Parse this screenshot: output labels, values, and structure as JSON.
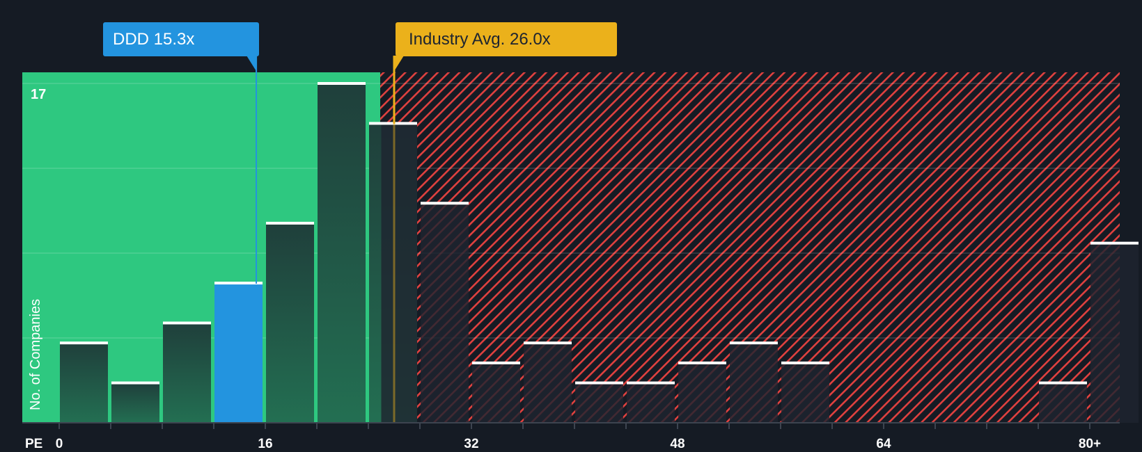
{
  "callouts": {
    "company": {
      "label": "DDD 15.3x",
      "value": 15.3,
      "color": "#2394df"
    },
    "industry": {
      "label": "Industry Avg. 26.0x",
      "value": 26.0,
      "color": "#ebb11b"
    }
  },
  "axis": {
    "x_prefix": "PE",
    "y_title": "No. of Companies",
    "y_max_label": "17"
  },
  "colors": {
    "background": "#151b24",
    "undervalued_zone": "#2ec880",
    "overvalued_hatch": "#e0413f",
    "bar_dark": "#214a40",
    "bar_highlight": "#2394df",
    "bar_top": "#ffffff"
  },
  "chart_data": {
    "type": "bar",
    "title": "",
    "xlabel": "PE",
    "ylabel": "No. of Companies",
    "x_tick_labels": [
      "0",
      "16",
      "32",
      "48",
      "64",
      "80+"
    ],
    "x_tick_values": [
      0,
      16,
      32,
      48,
      64,
      80
    ],
    "bin_width": 4,
    "categories": [
      "0-4",
      "4-8",
      "8-12",
      "12-16",
      "16-20",
      "20-24",
      "24-28",
      "28-32",
      "32-36",
      "36-40",
      "40-44",
      "44-48",
      "48-52",
      "52-56",
      "56-60",
      "60-64",
      "64-68",
      "68-72",
      "72-76",
      "76-80",
      "80+"
    ],
    "values": [
      4,
      2,
      5,
      7,
      10,
      17,
      15,
      11,
      3,
      4,
      2,
      2,
      3,
      4,
      3,
      0,
      0,
      0,
      0,
      2,
      9
    ],
    "highlight_bin": "12-16",
    "ylim": [
      0,
      17
    ],
    "y_gridlines": [
      4.25,
      8.5,
      12.75,
      17
    ],
    "grid": true,
    "legend": null,
    "annotations": [
      {
        "text": "DDD 15.3x",
        "x": 15.3
      },
      {
        "text": "Industry Avg. 26.0x",
        "x": 26.0
      }
    ],
    "zones": [
      {
        "name": "below-industry",
        "from": 0,
        "to": 25,
        "color": "#2ec880"
      },
      {
        "name": "above-industry",
        "from": 25,
        "to": 82,
        "color": "#e0413f",
        "pattern": "hatch"
      }
    ]
  }
}
